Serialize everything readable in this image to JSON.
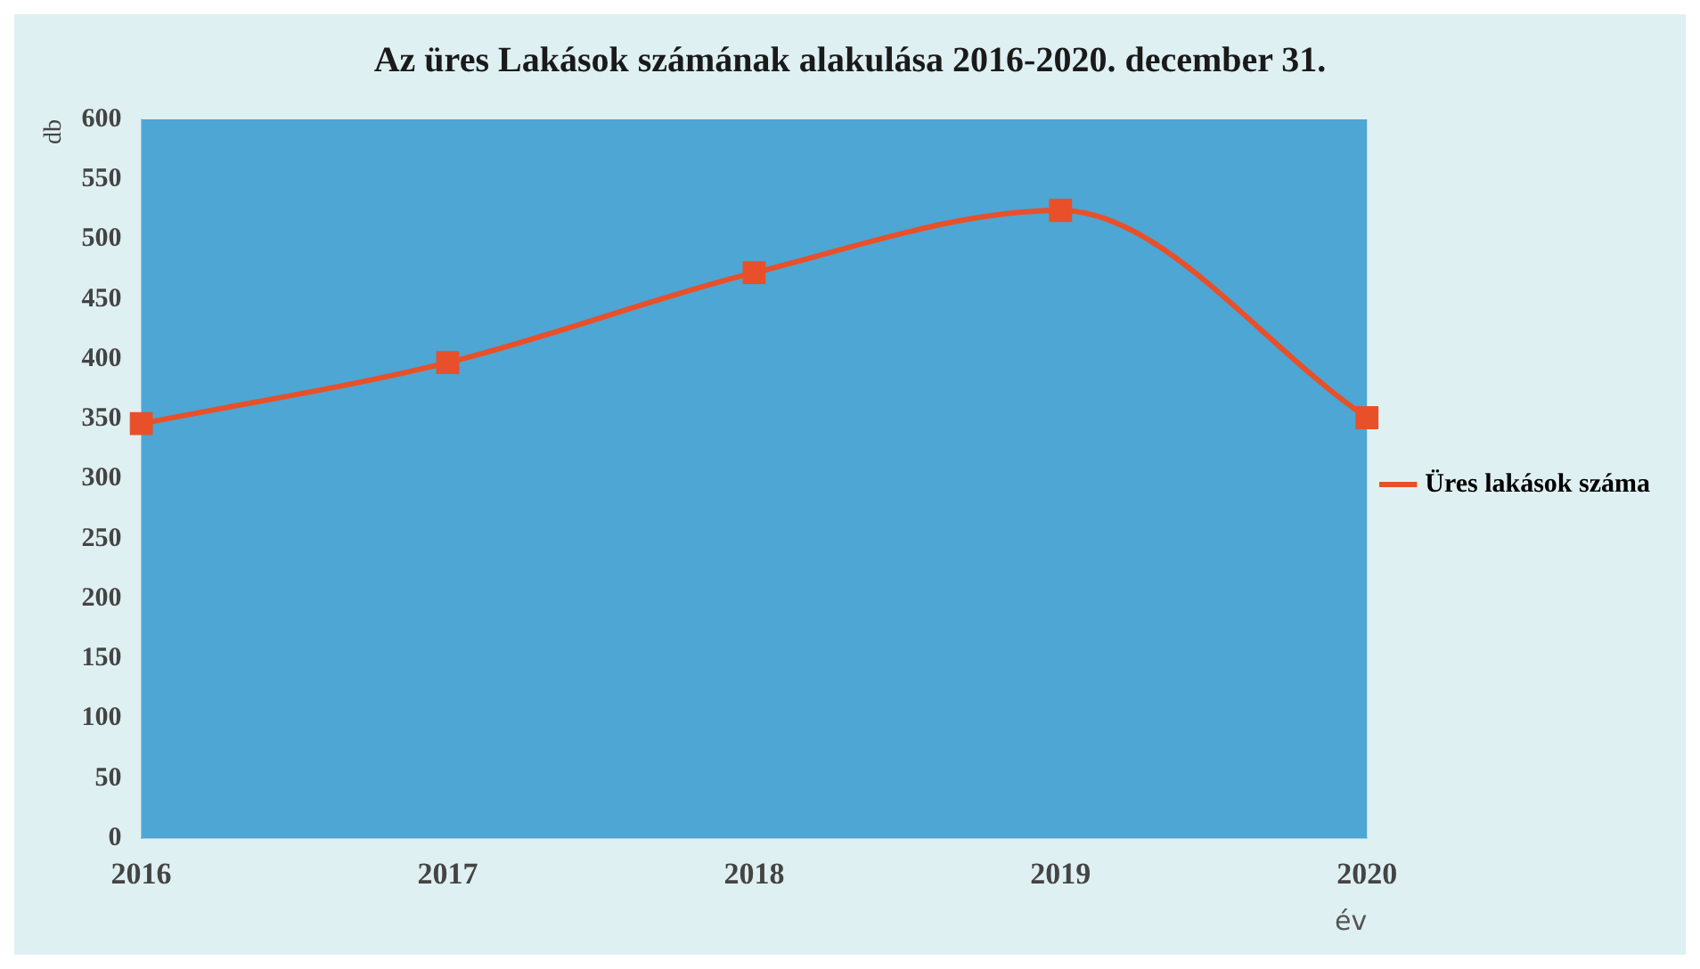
{
  "chart_data": {
    "type": "line",
    "title": "Az üres Lakások számának alakulása 2016-2020. december 31.",
    "xlabel": "év",
    "ylabel": "db",
    "categories": [
      "2016",
      "2017",
      "2018",
      "2019",
      "2020"
    ],
    "series": [
      {
        "name": "Üres lakások száma",
        "color": "#e8502a",
        "values": [
          346,
          397,
          472,
          524,
          351
        ]
      }
    ],
    "ylim": [
      0,
      600
    ],
    "yticks": [
      0,
      50,
      100,
      150,
      200,
      250,
      300,
      350,
      400,
      450,
      500,
      550,
      600
    ],
    "grid": false,
    "legend": "right",
    "marker": "square",
    "line_style": "solid"
  }
}
